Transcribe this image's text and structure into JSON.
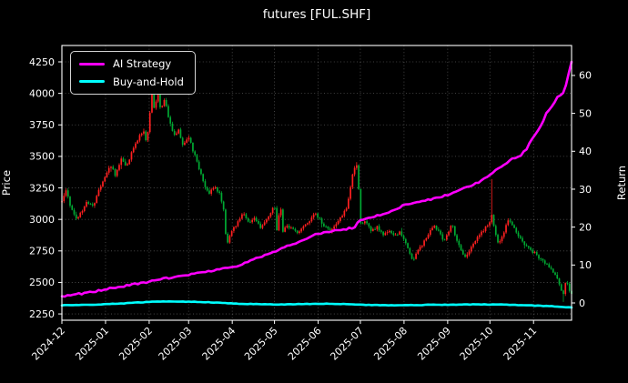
{
  "figure": {
    "title": "futures [FUL.SHF]",
    "background": "#000000",
    "foreground": "#ffffff",
    "grid_color": "#c8c8c8"
  },
  "legend": {
    "position": "upper-left",
    "entries": [
      {
        "label": "AI Strategy",
        "color": "#ff00ff"
      },
      {
        "label": "Buy-and-Hold",
        "color": "#00ffff"
      }
    ]
  },
  "chart_data": {
    "type": "candlestick",
    "title": "futures [FUL.SHF]",
    "grid": true,
    "x_axis": {
      "tick_labels": [
        "2024-12",
        "2025-01",
        "2025-02",
        "2025-03",
        "2025-04",
        "2025-05",
        "2025-06",
        "2025-07",
        "2025-08",
        "2025-09",
        "2025-10",
        "2025-11"
      ],
      "tick_days": [
        0,
        31,
        62,
        90,
        121,
        151,
        182,
        212,
        243,
        274,
        304,
        335
      ],
      "total_days": 362,
      "label_rotation_deg": 45
    },
    "price_axis": {
      "label": "Price",
      "ticks": [
        2250,
        2500,
        2750,
        3000,
        3250,
        3500,
        3750,
        4000,
        4250
      ],
      "plot_range": [
        2200,
        4380
      ]
    },
    "return_axis": {
      "label": "Return",
      "ticks": [
        0,
        10,
        20,
        30,
        40,
        50,
        60
      ],
      "plot_range": [
        -4.56,
        67.9
      ]
    },
    "candles": {
      "up_color": "#ff2020",
      "down_color": "#00aa33",
      "count": 250,
      "price_waypoints": [
        [
          0,
          3150
        ],
        [
          3,
          3230
        ],
        [
          6,
          3100
        ],
        [
          10,
          3000
        ],
        [
          14,
          3060
        ],
        [
          18,
          3140
        ],
        [
          22,
          3100
        ],
        [
          26,
          3220
        ],
        [
          31,
          3350
        ],
        [
          35,
          3430
        ],
        [
          38,
          3350
        ],
        [
          42,
          3480
        ],
        [
          46,
          3420
        ],
        [
          50,
          3550
        ],
        [
          55,
          3660
        ],
        [
          58,
          3700
        ],
        [
          60,
          3620
        ],
        [
          62,
          3760
        ],
        [
          64,
          4060
        ],
        [
          66,
          3800
        ],
        [
          68,
          4090
        ],
        [
          70,
          3860
        ],
        [
          73,
          3950
        ],
        [
          76,
          3800
        ],
        [
          80,
          3660
        ],
        [
          83,
          3710
        ],
        [
          86,
          3590
        ],
        [
          90,
          3650
        ],
        [
          93,
          3550
        ],
        [
          96,
          3460
        ],
        [
          100,
          3310
        ],
        [
          104,
          3200
        ],
        [
          108,
          3260
        ],
        [
          112,
          3210
        ],
        [
          115,
          3060
        ],
        [
          117,
          2800
        ],
        [
          121,
          2910
        ],
        [
          125,
          2980
        ],
        [
          129,
          3060
        ],
        [
          133,
          2960
        ],
        [
          137,
          3010
        ],
        [
          141,
          2930
        ],
        [
          145,
          2990
        ],
        [
          149,
          3060
        ],
        [
          151,
          3120
        ],
        [
          153,
          2880
        ],
        [
          155,
          3140
        ],
        [
          157,
          2910
        ],
        [
          160,
          2950
        ],
        [
          164,
          2920
        ],
        [
          168,
          2890
        ],
        [
          172,
          2950
        ],
        [
          176,
          2990
        ],
        [
          180,
          3050
        ],
        [
          183,
          3000
        ],
        [
          186,
          2950
        ],
        [
          190,
          2910
        ],
        [
          194,
          2960
        ],
        [
          198,
          3010
        ],
        [
          202,
          3090
        ],
        [
          205,
          3250
        ],
        [
          207,
          3390
        ],
        [
          209,
          3445
        ],
        [
          210,
          3430
        ],
        [
          212,
          2965
        ],
        [
          216,
          2985
        ],
        [
          220,
          2905
        ],
        [
          224,
          2945
        ],
        [
          228,
          2875
        ],
        [
          232,
          2915
        ],
        [
          236,
          2865
        ],
        [
          240,
          2895
        ],
        [
          243,
          2850
        ],
        [
          246,
          2760
        ],
        [
          249,
          2670
        ],
        [
          252,
          2745
        ],
        [
          256,
          2805
        ],
        [
          260,
          2885
        ],
        [
          264,
          2950
        ],
        [
          268,
          2900
        ],
        [
          271,
          2835
        ],
        [
          274,
          2875
        ],
        [
          277,
          2960
        ],
        [
          280,
          2850
        ],
        [
          283,
          2770
        ],
        [
          286,
          2700
        ],
        [
          290,
          2765
        ],
        [
          294,
          2835
        ],
        [
          298,
          2895
        ],
        [
          302,
          2955
        ],
        [
          304,
          2975
        ],
        [
          305,
          3050
        ],
        [
          306,
          2990
        ],
        [
          308,
          2890
        ],
        [
          310,
          2800
        ],
        [
          314,
          2905
        ],
        [
          317,
          2995
        ],
        [
          321,
          2930
        ],
        [
          325,
          2860
        ],
        [
          329,
          2800
        ],
        [
          332,
          2765
        ],
        [
          335,
          2740
        ],
        [
          339,
          2695
        ],
        [
          343,
          2655
        ],
        [
          347,
          2605
        ],
        [
          350,
          2565
        ],
        [
          353,
          2505
        ],
        [
          355,
          2420
        ],
        [
          356,
          2390
        ],
        [
          358,
          2520
        ],
        [
          360,
          2455
        ],
        [
          362,
          2405
        ]
      ],
      "extreme_events": [
        {
          "day": 64,
          "high": 4150
        },
        {
          "day": 68,
          "high": 4130
        },
        {
          "day": 209,
          "high": 3450
        },
        {
          "day": 305,
          "high": 3320
        },
        {
          "day": 356,
          "low": 2345
        },
        {
          "day": 362,
          "low": 2330
        }
      ]
    },
    "series": [
      {
        "name": "AI Strategy",
        "axis": "return",
        "color": "#ff00ff",
        "line_width": 2.6,
        "points": [
          [
            0,
            1.8
          ],
          [
            8,
            2.2
          ],
          [
            15,
            2.5
          ],
          [
            22,
            2.9
          ],
          [
            31,
            3.6
          ],
          [
            40,
            4.2
          ],
          [
            50,
            4.8
          ],
          [
            62,
            5.6
          ],
          [
            70,
            6.2
          ],
          [
            80,
            6.9
          ],
          [
            91,
            7.5
          ],
          [
            100,
            8.1
          ],
          [
            110,
            8.7
          ],
          [
            122,
            9.4
          ],
          [
            130,
            10.5
          ],
          [
            140,
            12.0
          ],
          [
            151,
            13.6
          ],
          [
            160,
            15.0
          ],
          [
            170,
            16.4
          ],
          [
            182,
            18.3
          ],
          [
            190,
            18.8
          ],
          [
            196,
            19.2
          ],
          [
            203,
            19.6
          ],
          [
            208,
            19.9
          ],
          [
            211,
            21.7
          ],
          [
            216,
            22.2
          ],
          [
            224,
            23.0
          ],
          [
            232,
            23.9
          ],
          [
            243,
            25.8
          ],
          [
            252,
            26.5
          ],
          [
            262,
            27.3
          ],
          [
            273,
            28.4
          ],
          [
            281,
            29.5
          ],
          [
            288,
            30.6
          ],
          [
            296,
            31.8
          ],
          [
            304,
            33.8
          ],
          [
            308,
            34.9
          ],
          [
            314,
            36.2
          ],
          [
            320,
            38.0
          ],
          [
            326,
            39.0
          ],
          [
            330,
            40.5
          ],
          [
            334,
            43.3
          ],
          [
            338,
            45.5
          ],
          [
            341,
            47.0
          ],
          [
            344,
            50.0
          ],
          [
            347,
            51.5
          ],
          [
            350,
            53.0
          ],
          [
            353,
            54.8
          ],
          [
            356,
            55.2
          ],
          [
            358,
            57.5
          ],
          [
            360,
            60.5
          ],
          [
            362,
            63.5
          ]
        ]
      },
      {
        "name": "Buy-and-Hold",
        "axis": "return",
        "color": "#00ffff",
        "line_width": 2.6,
        "points": [
          [
            0,
            -0.6
          ],
          [
            20,
            -0.5
          ],
          [
            45,
            -0.1
          ],
          [
            62,
            0.3
          ],
          [
            80,
            0.4
          ],
          [
            95,
            0.3
          ],
          [
            110,
            0.1
          ],
          [
            125,
            -0.2
          ],
          [
            140,
            -0.3
          ],
          [
            155,
            -0.4
          ],
          [
            170,
            -0.3
          ],
          [
            185,
            -0.2
          ],
          [
            200,
            -0.3
          ],
          [
            215,
            -0.5
          ],
          [
            230,
            -0.6
          ],
          [
            245,
            -0.6
          ],
          [
            260,
            -0.5
          ],
          [
            275,
            -0.5
          ],
          [
            290,
            -0.4
          ],
          [
            305,
            -0.4
          ],
          [
            320,
            -0.5
          ],
          [
            335,
            -0.7
          ],
          [
            350,
            -0.9
          ],
          [
            357,
            -1.1
          ],
          [
            362,
            -1.2
          ]
        ]
      }
    ]
  }
}
